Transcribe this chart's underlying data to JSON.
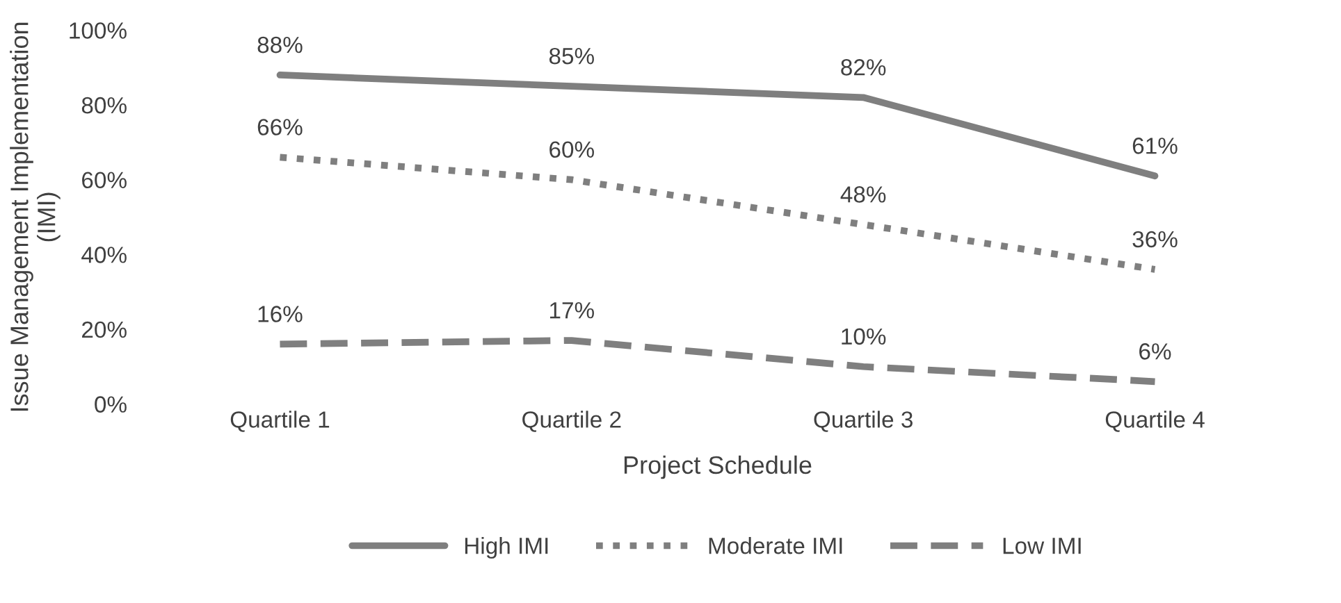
{
  "chart_data": {
    "type": "line",
    "xlabel": "Project Schedule",
    "ylabel": "Issue Management Implementation (IMI)",
    "categories": [
      "Quartile 1",
      "Quartile 2",
      "Quartile 3",
      "Quartile 4"
    ],
    "series": [
      {
        "name": "High IMI",
        "color": "#7f7f7f",
        "line_style": "solid",
        "values": [
          88,
          85,
          82,
          61
        ],
        "value_labels": [
          "88%",
          "85%",
          "82%",
          "61%"
        ]
      },
      {
        "name": "Moderate IMI",
        "color": "#7f7f7f",
        "line_style": "dotted",
        "values": [
          66,
          60,
          48,
          36
        ],
        "value_labels": [
          "66%",
          "60%",
          "48%",
          "36%"
        ]
      },
      {
        "name": "Low IMI",
        "color": "#7f7f7f",
        "line_style": "dashed",
        "values": [
          16,
          17,
          10,
          6
        ],
        "value_labels": [
          "16%",
          "17%",
          "10%",
          "6%"
        ]
      }
    ],
    "ylim": [
      0,
      100
    ],
    "yticks": [
      {
        "value": 0,
        "label": "0%"
      },
      {
        "value": 20,
        "label": "20%"
      },
      {
        "value": 40,
        "label": "40%"
      },
      {
        "value": 60,
        "label": "60%"
      },
      {
        "value": 80,
        "label": "80%"
      },
      {
        "value": 100,
        "label": "100%"
      }
    ],
    "grid": false,
    "legend": "bottom",
    "marker": "none"
  }
}
